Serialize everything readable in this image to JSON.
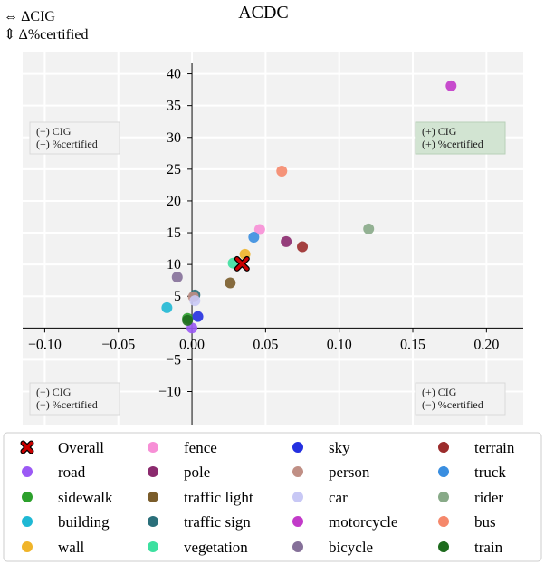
{
  "chart_data": {
    "type": "scatter",
    "title": "ACDC",
    "xaxis_label": "⇔ ΔCIG",
    "yaxis_label": "⇕ Δ%certified",
    "xlim": [
      -0.115,
      0.225
    ],
    "ylim": [
      -15.2,
      43.5
    ],
    "xticks": [
      -0.1,
      -0.05,
      0.0,
      0.05,
      0.1,
      0.15,
      0.2
    ],
    "xtick_labels": [
      "−0.10",
      "−0.05",
      "0.00",
      "0.05",
      "0.10",
      "0.15",
      "0.20"
    ],
    "yticks": [
      -10,
      -5,
      5,
      10,
      15,
      20,
      25,
      30,
      35,
      40
    ],
    "ytick_labels": [
      "−10",
      "−5",
      "5",
      "10",
      "15",
      "20",
      "25",
      "30",
      "35",
      "40"
    ],
    "grid": true,
    "quadrant_labels": [
      {
        "line1": "(−) CIG",
        "line2": "(+) %certified",
        "where": "top-left",
        "highlight": false
      },
      {
        "line1": "(+) CIG",
        "line2": "(+) %certified",
        "where": "top-right",
        "highlight": true
      },
      {
        "line1": "(−) CIG",
        "line2": "(−) %certified",
        "where": "bottom-left",
        "highlight": false
      },
      {
        "line1": "(+) CIG",
        "line2": "(−) %certified",
        "where": "bottom-right",
        "highlight": false
      }
    ],
    "overall": {
      "name": "Overall",
      "x": 0.034,
      "y": 10.1,
      "color": "#cc0000"
    },
    "series": [
      {
        "name": "road",
        "x": 0.0,
        "y": 0.0,
        "color": "#9b59f5"
      },
      {
        "name": "sidewalk",
        "x": -0.003,
        "y": 1.5,
        "color": "#2ca02c"
      },
      {
        "name": "building",
        "x": -0.017,
        "y": 3.2,
        "color": "#1fb8d4"
      },
      {
        "name": "wall",
        "x": 0.036,
        "y": 11.6,
        "color": "#f0b429"
      },
      {
        "name": "fence",
        "x": 0.046,
        "y": 15.5,
        "color": "#f78fd6"
      },
      {
        "name": "pole",
        "x": 0.064,
        "y": 13.6,
        "color": "#8b2a6e"
      },
      {
        "name": "traffic light",
        "x": 0.026,
        "y": 7.1,
        "color": "#7a5c2a"
      },
      {
        "name": "traffic sign",
        "x": 0.002,
        "y": 5.2,
        "color": "#2a6f7a"
      },
      {
        "name": "vegetation",
        "x": 0.028,
        "y": 10.2,
        "color": "#3de0a0"
      },
      {
        "name": "sky",
        "x": 0.004,
        "y": 1.8,
        "color": "#2430e0"
      },
      {
        "name": "person",
        "x": 0.001,
        "y": 4.9,
        "color": "#c08f85"
      },
      {
        "name": "car",
        "x": 0.002,
        "y": 4.3,
        "color": "#c8c8f5"
      },
      {
        "name": "motorcycle",
        "x": 0.176,
        "y": 38.1,
        "color": "#c23ac9"
      },
      {
        "name": "bicycle",
        "x": -0.01,
        "y": 8.0,
        "color": "#857099"
      },
      {
        "name": "terrain",
        "x": 0.075,
        "y": 12.8,
        "color": "#9b2c2c"
      },
      {
        "name": "truck",
        "x": 0.042,
        "y": 14.3,
        "color": "#3a8ee0"
      },
      {
        "name": "rider",
        "x": 0.12,
        "y": 15.6,
        "color": "#88aa88"
      },
      {
        "name": "bus",
        "x": 0.061,
        "y": 24.7,
        "color": "#f5886b"
      },
      {
        "name": "train",
        "x": -0.003,
        "y": 1.2,
        "color": "#1e6b1e"
      }
    ],
    "legend_position": "bottom",
    "legend_order": [
      "Overall",
      "road",
      "sidewalk",
      "building",
      "wall",
      "fence",
      "pole",
      "traffic light",
      "traffic sign",
      "vegetation",
      "sky",
      "person",
      "car",
      "motorcycle",
      "bicycle",
      "terrain",
      "truck",
      "rider",
      "bus",
      "train"
    ]
  }
}
